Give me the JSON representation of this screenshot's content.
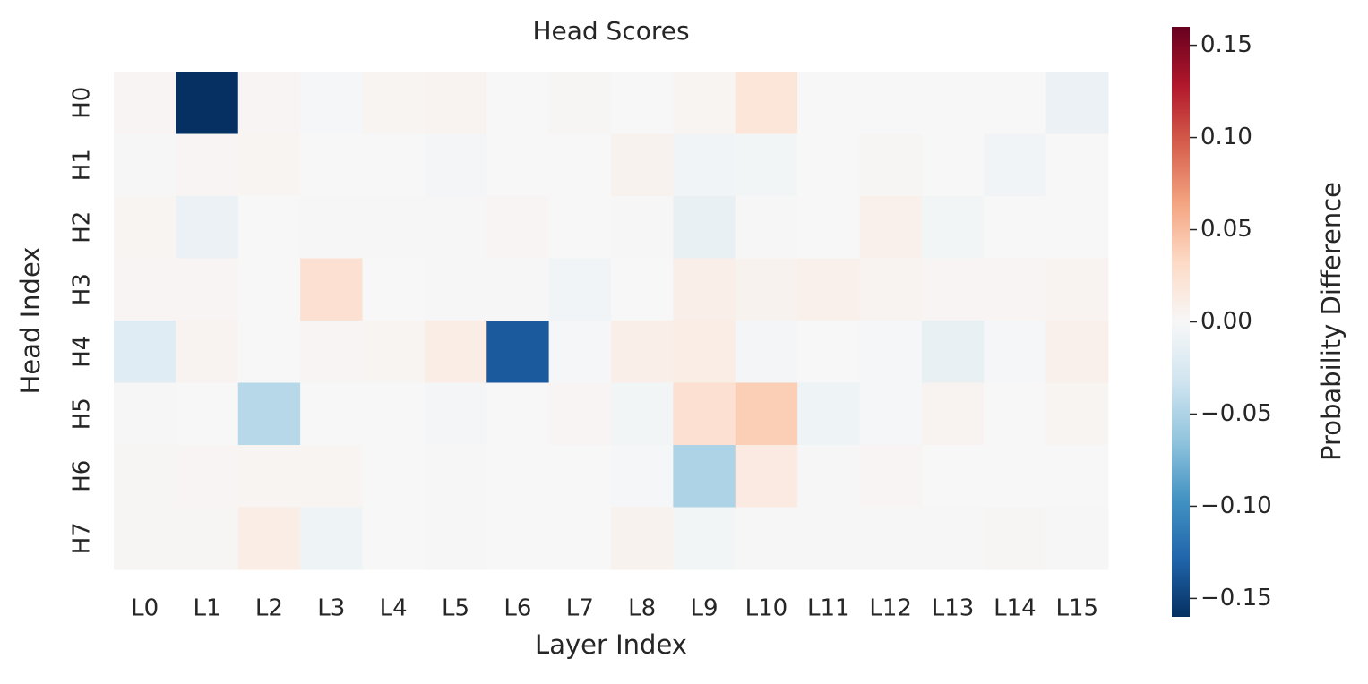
{
  "chart_data": {
    "type": "heatmap",
    "title": "Head Scores",
    "xlabel": "Layer Index",
    "ylabel": "Head Index",
    "colorbar_label": "Probability Difference",
    "colormap": "RdBu_r",
    "categories": [
      "L0",
      "L1",
      "L2",
      "L3",
      "L4",
      "L5",
      "L6",
      "L7",
      "L8",
      "L9",
      "L10",
      "L11",
      "L12",
      "L13",
      "L14",
      "L15"
    ],
    "y_categories": [
      "H0",
      "H1",
      "H2",
      "H3",
      "H4",
      "H5",
      "H6",
      "H7"
    ],
    "values": [
      [
        0.003,
        -0.16,
        0.003,
        -0.002,
        0.004,
        0.005,
        0,
        0.002,
        0,
        0.004,
        0.02,
        0,
        0,
        0,
        0,
        -0.01
      ],
      [
        0.001,
        0.003,
        0.004,
        0,
        0,
        -0.003,
        0,
        0,
        0.006,
        -0.006,
        -0.004,
        0,
        0.002,
        0,
        -0.005,
        0
      ],
      [
        0.004,
        -0.01,
        0,
        0.001,
        0.001,
        -0.001,
        0.003,
        0,
        0.001,
        -0.012,
        -0.001,
        0,
        0.008,
        -0.004,
        0,
        0
      ],
      [
        0.003,
        0.003,
        0,
        0.025,
        0,
        -0.001,
        -0.001,
        -0.006,
        0,
        0.01,
        0.006,
        0.008,
        0.005,
        0.003,
        0.003,
        0.005
      ],
      [
        -0.02,
        0.005,
        0,
        0.003,
        0.004,
        0.012,
        -0.135,
        -0.002,
        0.01,
        0.012,
        -0.003,
        0,
        -0.002,
        -0.012,
        -0.002,
        0.008
      ],
      [
        -0.001,
        0,
        -0.045,
        0,
        0,
        -0.003,
        0,
        0.003,
        -0.004,
        0.025,
        0.04,
        -0.008,
        -0.002,
        0.005,
        0,
        0.004
      ],
      [
        0.002,
        0.003,
        0.004,
        0.004,
        0,
        -0.001,
        0,
        0,
        -0.002,
        -0.05,
        0.015,
        -0.001,
        0.003,
        0,
        0,
        0
      ],
      [
        0.002,
        0.002,
        0.012,
        -0.008,
        0,
        -0.001,
        0,
        0,
        0.006,
        -0.004,
        0.001,
        0.001,
        0.001,
        0.001,
        0.002,
        0.001
      ]
    ],
    "clim": [
      -0.16,
      0.16
    ],
    "cticks": [
      {
        "value": -0.15,
        "label": "−0.15"
      },
      {
        "value": -0.1,
        "label": "−0.10"
      },
      {
        "value": -0.05,
        "label": "−0.05"
      },
      {
        "value": 0,
        "label": "0.00"
      },
      0.05,
      {
        "value": 0.1,
        "label": "0.10"
      },
      0.15
    ]
  }
}
